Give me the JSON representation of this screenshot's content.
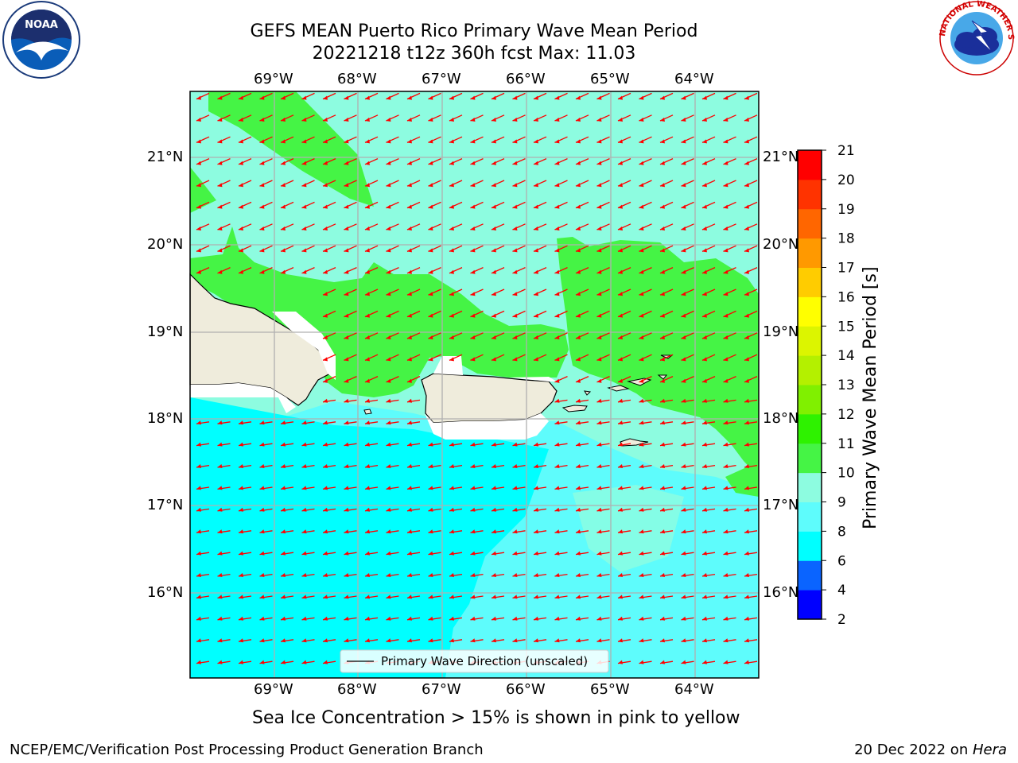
{
  "header": {
    "title_line1": "GEFS MEAN Puerto Rico Primary Wave Mean Period",
    "title_line2": "20221218 t12z 360h fcst   Max: 11.03"
  },
  "logos": {
    "noaa_text": "NOAA",
    "noaa_ring": "NATIONAL OCEANIC AND ATMOSPHERIC ADMINISTRATION · U.S. DEPARTMENT OF COMMERCE",
    "nws_ring": "NATIONAL WEATHER SERVICE"
  },
  "map": {
    "lon_labels": [
      "69°W",
      "68°W",
      "67°W",
      "66°W",
      "65°W",
      "64°W"
    ],
    "lat_labels": [
      "21°N",
      "20°N",
      "19°N",
      "18°N",
      "17°N",
      "16°N"
    ],
    "arrow_color": "#ff0000",
    "land_color": "#efecdc",
    "legend_label": "Primary Wave Direction (unscaled)"
  },
  "colorbar": {
    "label": "Primary Wave Mean Period [s]",
    "ticks": [
      "2",
      "4",
      "6",
      "8",
      "9",
      "10",
      "11",
      "12",
      "13",
      "14",
      "15",
      "16",
      "17",
      "18",
      "19",
      "20",
      "21"
    ],
    "colors": [
      "#0000ff",
      "#0a64ff",
      "#00ffff",
      "#5efcfc",
      "#8dfce0",
      "#45f445",
      "#2ef200",
      "#80f000",
      "#b4f000",
      "#dcf500",
      "#ffff00",
      "#ffcc00",
      "#ff9900",
      "#ff6600",
      "#ff3300",
      "#ff0000"
    ]
  },
  "captions": {
    "sea_ice": "Sea Ice Concentration > 15% is shown in pink to yellow",
    "branch": "NCEP/EMC/Verification Post Processing Product Generation Branch",
    "date_prefix": "20 Dec 2022 on ",
    "machine": "Hera"
  }
}
